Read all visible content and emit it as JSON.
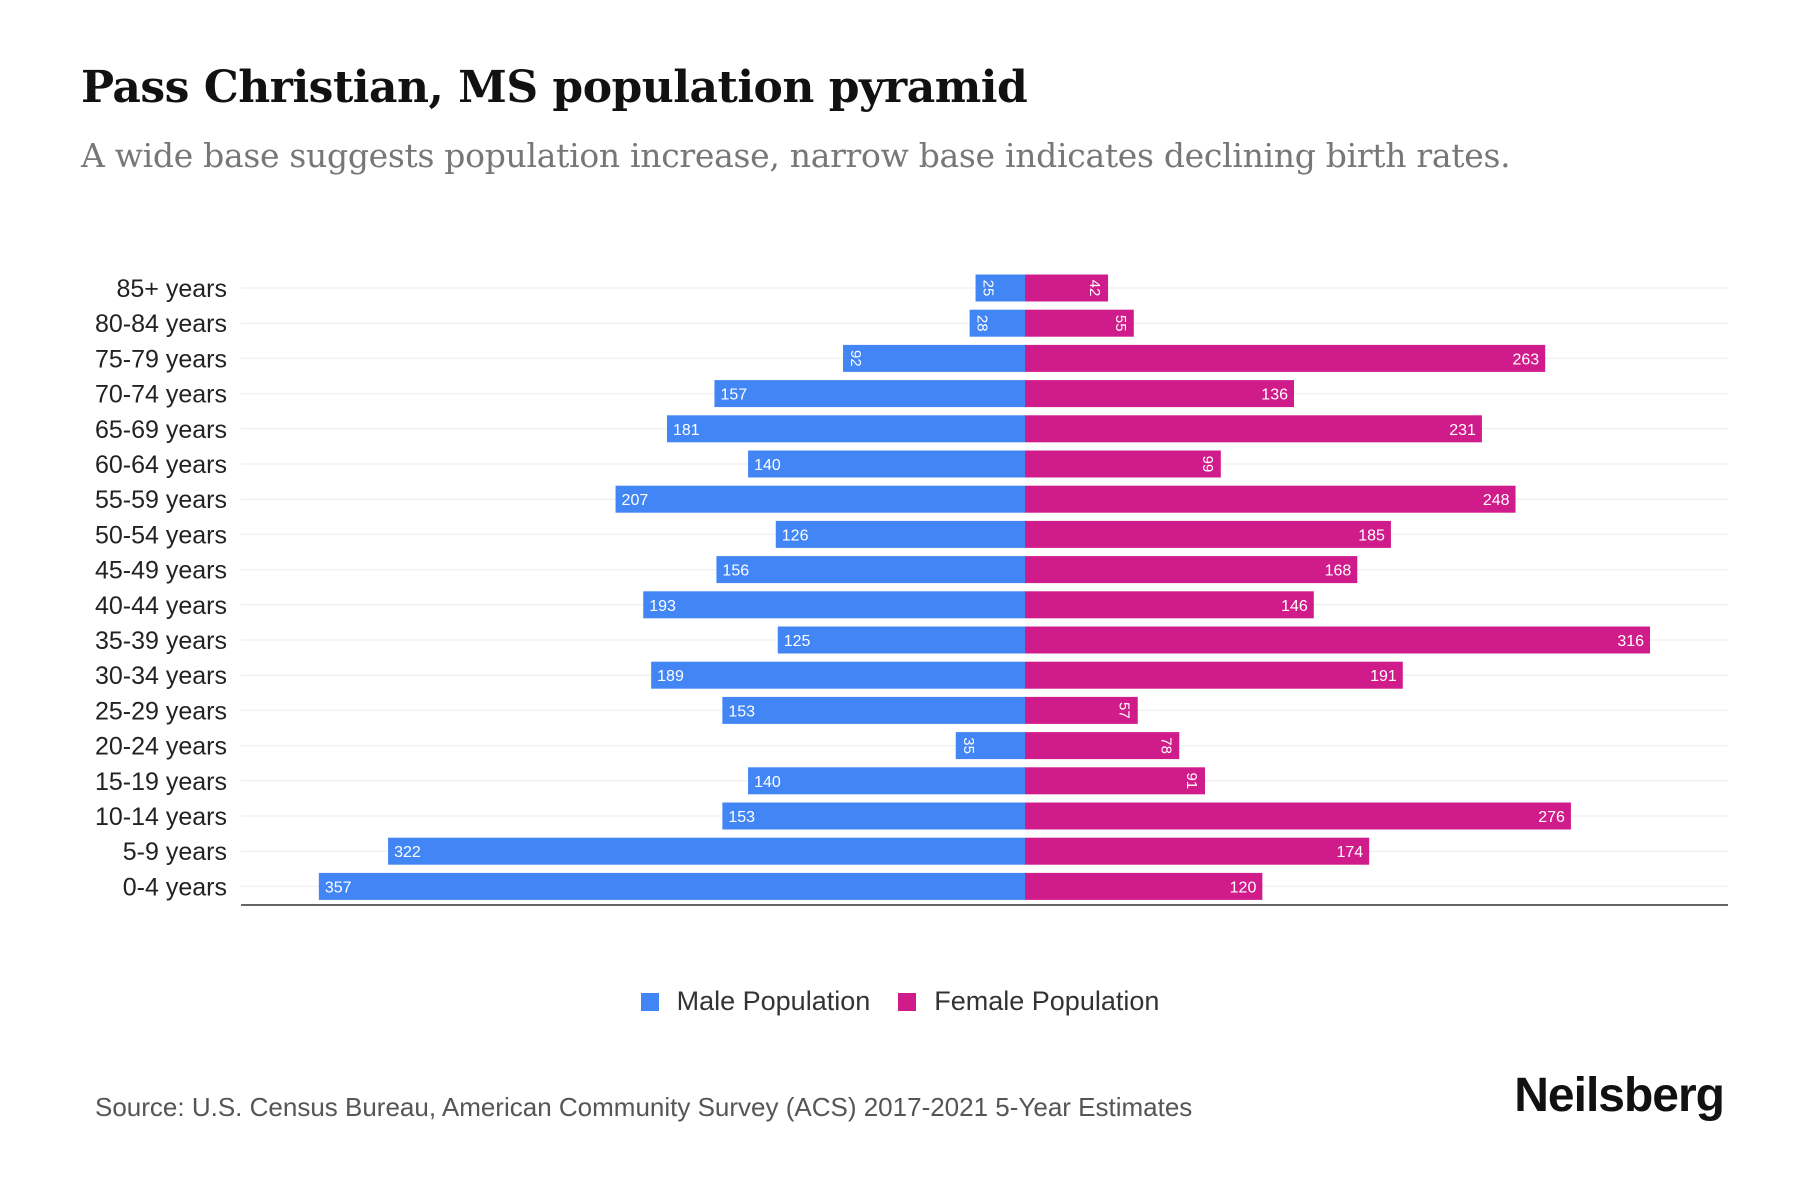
{
  "title": "Pass Christian, MS population pyramid",
  "subtitle": "A wide base suggests population increase, narrow base indicates declining birth rates.",
  "source": "Source: U.S. Census Bureau, American Community Survey (ACS) 2017-2021 5-Year Estimates",
  "logo": "Neilsberg",
  "chart_data": {
    "type": "bar",
    "orientation": "horizontal-pyramid",
    "categories": [
      "85+ years",
      "80-84 years",
      "75-79 years",
      "70-74 years",
      "65-69 years",
      "60-64 years",
      "55-59 years",
      "50-54 years",
      "45-49 years",
      "40-44 years",
      "35-39 years",
      "30-34 years",
      "25-29 years",
      "20-24 years",
      "15-19 years",
      "10-14 years",
      "5-9 years",
      "0-4 years"
    ],
    "series": [
      {
        "name": "Male Population",
        "color": "#4285f4",
        "values": [
          25,
          28,
          92,
          157,
          181,
          140,
          207,
          126,
          156,
          193,
          125,
          189,
          153,
          35,
          140,
          153,
          322,
          357
        ]
      },
      {
        "name": "Female Population",
        "color": "#d01c8b",
        "values": [
          42,
          55,
          263,
          136,
          231,
          99,
          248,
          185,
          168,
          146,
          316,
          191,
          57,
          78,
          91,
          276,
          174,
          120
        ]
      }
    ],
    "grid": true,
    "legend": "bottom"
  }
}
